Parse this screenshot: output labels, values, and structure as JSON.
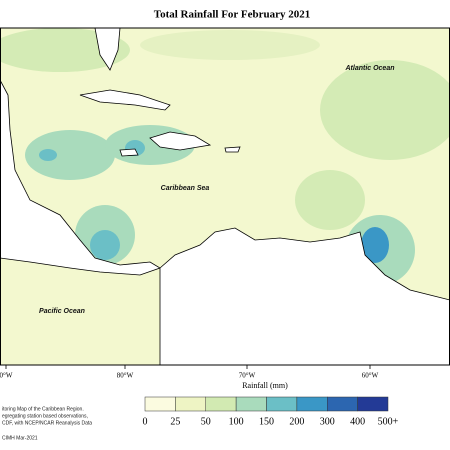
{
  "title": "Total Rainfall For February 2021",
  "map_labels": [
    "Atlantic Ocean",
    "Caribbean Sea",
    "Pacific Ocean"
  ],
  "longitude_labels": [
    "0°W",
    "80°W",
    "70°W",
    "60°W"
  ],
  "legend": {
    "title": "Rainfall (mm)",
    "colors": [
      "#fbfbe0",
      "#eef4c4",
      "#d2eab2",
      "#a9dbbc",
      "#6bbfc6",
      "#3a97c6",
      "#2c66b0",
      "#233a96",
      "#0f2360"
    ],
    "labels": [
      "0",
      "25",
      "50",
      "100",
      "150",
      "200",
      "300",
      "400",
      "500+"
    ]
  },
  "footnote": [
    "itoring Map of the Caribbean Region.",
    "egregating station based observations,",
    "CDF, with NCEP/NCAR Reanalysis Data"
  ],
  "credit": "CIMH Mar-2021"
}
